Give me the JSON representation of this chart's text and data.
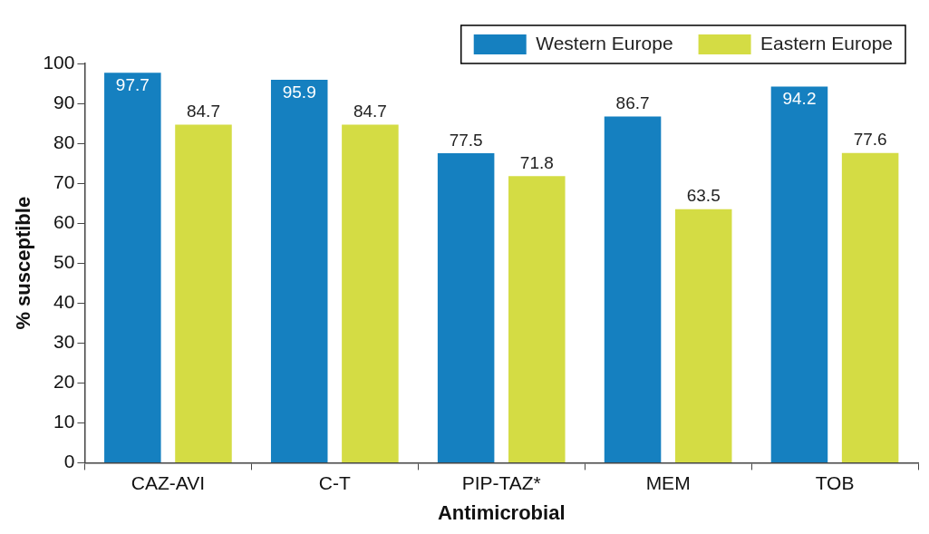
{
  "chart_data": {
    "type": "bar",
    "xlabel": "Antimicrobial",
    "ylabel": "% susceptible",
    "categories": [
      "CAZ-AVI",
      "C-T",
      "PIP-TAZ*",
      "MEM",
      "TOB"
    ],
    "series": [
      {
        "name": "Western Europe",
        "color": "#1580c0",
        "values": [
          97.7,
          95.9,
          77.5,
          86.7,
          94.2
        ]
      },
      {
        "name": "Eastern Europe",
        "color": "#d4dc44",
        "values": [
          84.7,
          84.7,
          71.8,
          63.5,
          77.6
        ]
      }
    ],
    "ylim": [
      0,
      100
    ],
    "yticks": [
      0,
      10,
      20,
      30,
      40,
      50,
      60,
      70,
      80,
      90,
      100
    ],
    "grid": false,
    "legend": "top right",
    "data_labels": true
  }
}
